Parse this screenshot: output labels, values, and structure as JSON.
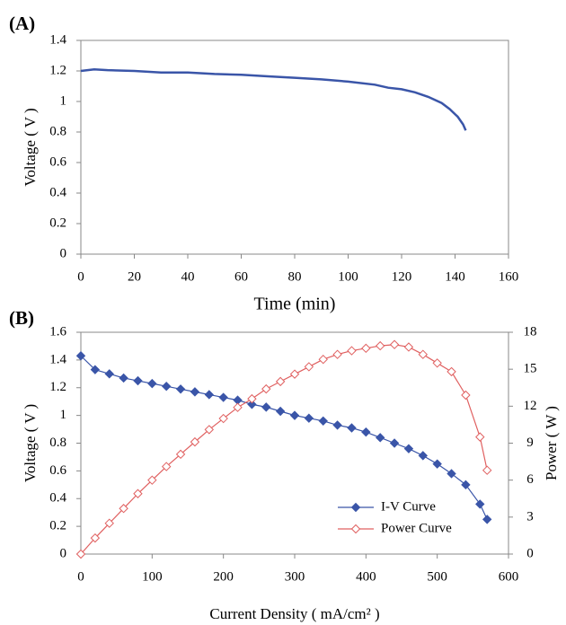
{
  "chart_data": [
    {
      "type": "line",
      "label": "(A)",
      "y_label": "Voltage ( V )",
      "x_label": "Time (min)",
      "x": [
        0,
        5,
        10,
        20,
        30,
        40,
        50,
        60,
        70,
        80,
        90,
        100,
        110,
        115,
        120,
        125,
        130,
        135,
        138,
        141,
        143,
        144
      ],
      "series": [
        {
          "color": "#3a55a8",
          "values": [
            1.2,
            1.21,
            1.205,
            1.2,
            1.19,
            1.19,
            1.18,
            1.175,
            1.165,
            1.155,
            1.145,
            1.13,
            1.11,
            1.09,
            1.08,
            1.06,
            1.03,
            0.99,
            0.95,
            0.9,
            0.85,
            0.81
          ]
        }
      ],
      "xlim": [
        0,
        160
      ],
      "xticks": [
        0,
        20,
        40,
        60,
        80,
        100,
        120,
        140,
        160
      ],
      "ylim": [
        0,
        1.4
      ],
      "yticks": [
        0,
        0.2,
        0.4,
        0.6,
        0.8,
        1,
        1.2,
        1.4
      ]
    },
    {
      "type": "line",
      "label": "(B)",
      "y_label": "Voltage ( V )",
      "y2_label": "Power ( W )",
      "x_label": "Current Density ( mA/cm² )",
      "x": [
        0,
        20,
        40,
        60,
        80,
        100,
        120,
        140,
        160,
        180,
        200,
        220,
        240,
        260,
        280,
        300,
        320,
        340,
        360,
        380,
        400,
        420,
        440,
        460,
        480,
        500,
        520,
        540,
        560,
        570
      ],
      "series": [
        {
          "name": "I-V Curve",
          "color": "#3a55a8",
          "marker": "filled",
          "values": [
            1.43,
            1.33,
            1.3,
            1.27,
            1.25,
            1.23,
            1.21,
            1.19,
            1.17,
            1.15,
            1.13,
            1.11,
            1.08,
            1.06,
            1.03,
            1.0,
            0.98,
            0.96,
            0.93,
            0.91,
            0.88,
            0.84,
            0.8,
            0.76,
            0.71,
            0.65,
            0.58,
            0.5,
            0.36,
            0.25
          ]
        },
        {
          "name": "Power Curve",
          "color": "#e06060",
          "marker": "open",
          "axis": "y2",
          "values": [
            0,
            1.3,
            2.5,
            3.7,
            4.9,
            6.0,
            7.1,
            8.1,
            9.1,
            10.1,
            11.0,
            11.9,
            12.6,
            13.4,
            14.0,
            14.6,
            15.2,
            15.8,
            16.2,
            16.5,
            16.7,
            16.9,
            17.0,
            16.8,
            16.2,
            15.5,
            14.8,
            12.9,
            9.5,
            6.8
          ]
        }
      ],
      "xlim": [
        0,
        600
      ],
      "xticks": [
        0,
        100,
        200,
        300,
        400,
        500,
        600
      ],
      "ylim": [
        0,
        1.6
      ],
      "yticks": [
        0,
        0.2,
        0.4,
        0.6,
        0.8,
        1,
        1.2,
        1.4,
        1.6
      ],
      "y2lim": [
        0,
        18
      ],
      "y2ticks": [
        0,
        3,
        6,
        9,
        12,
        15,
        18
      ],
      "legend": "lower right"
    }
  ]
}
